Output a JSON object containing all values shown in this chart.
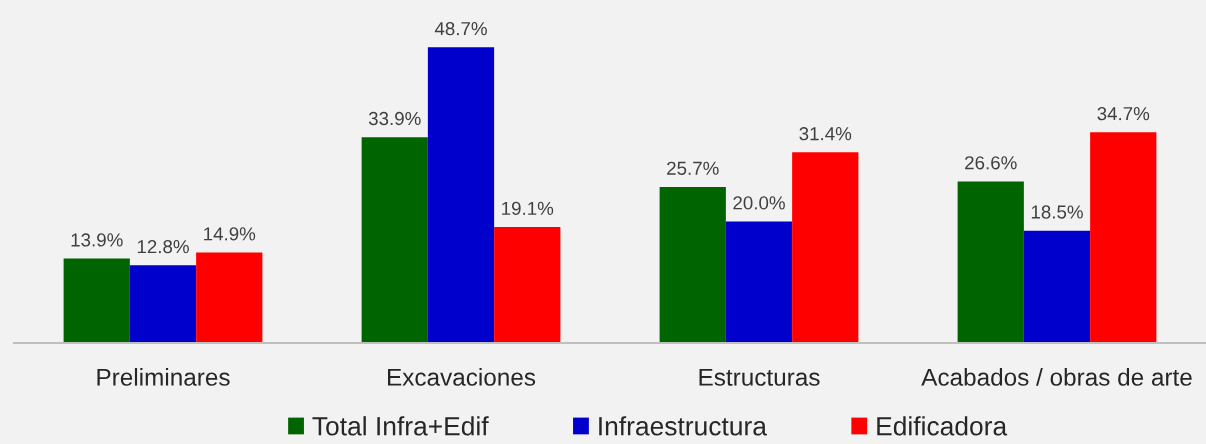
{
  "chart_data": {
    "type": "bar",
    "categories": [
      "Preliminares",
      "Excavaciones",
      "Estructuras",
      "Acabados / obras de arte"
    ],
    "series": [
      {
        "name": "Total Infra+Edif",
        "color": "#006400",
        "values": [
          13.9,
          33.9,
          25.7,
          26.6
        ],
        "value_labels": [
          "13.9%",
          "33.9%",
          "25.7%",
          "26.6%"
        ]
      },
      {
        "name": "Infraestructura",
        "color": "#0000cc",
        "values": [
          12.8,
          48.7,
          20.0,
          18.5
        ],
        "value_labels": [
          "12.8%",
          "48.7%",
          "20.0%",
          "18.5%"
        ]
      },
      {
        "name": "Edificadora",
        "color": "#ff0000",
        "values": [
          14.9,
          19.1,
          31.4,
          34.7
        ],
        "value_labels": [
          "14.9%",
          "19.1%",
          "31.4%",
          "34.7%"
        ]
      }
    ],
    "legend": "bottom",
    "tick_labels": "x"
  }
}
